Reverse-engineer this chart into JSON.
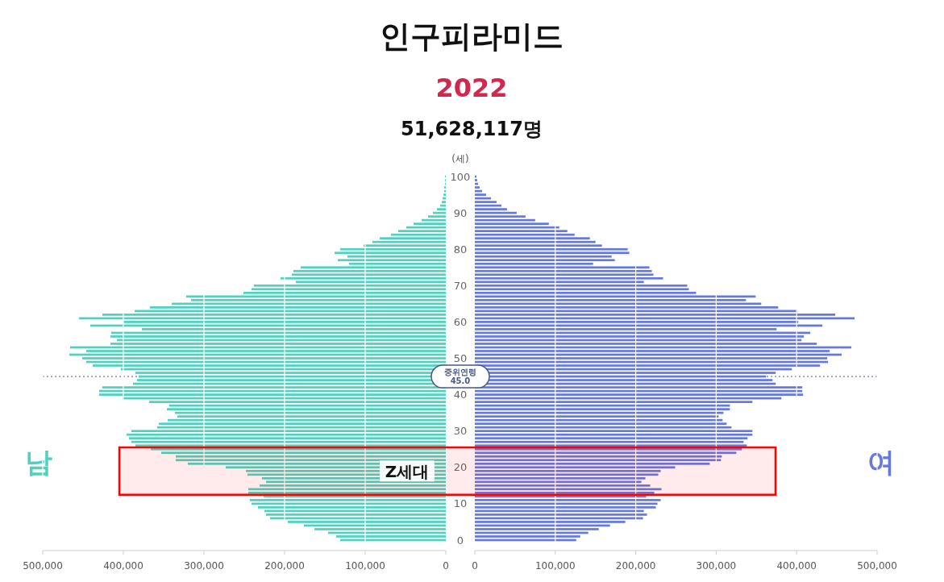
{
  "chart_data": [
    {
      "type": "bar",
      "orientation": "horizontal",
      "title": "인구피라미드",
      "subtitle": "2022",
      "annotations": [
        "51,628,117명"
      ],
      "x": [
        100,
        99,
        98,
        97,
        96,
        95,
        94,
        93,
        92,
        91,
        90,
        89,
        88,
        87,
        86,
        85,
        84,
        83,
        82,
        81,
        80,
        79,
        78,
        77,
        76,
        75,
        74,
        73,
        72,
        71,
        70,
        69,
        68,
        67,
        66,
        65,
        64,
        63,
        62,
        61,
        60,
        59,
        58,
        57,
        56,
        55,
        54,
        53,
        52,
        51,
        50,
        49,
        48,
        47,
        46,
        45,
        44,
        43,
        42,
        41,
        40,
        39,
        38,
        37,
        36,
        35,
        34,
        33,
        32,
        31,
        30,
        29,
        28,
        27,
        26,
        25,
        24,
        23,
        22,
        21,
        20,
        19,
        18,
        17,
        16,
        15,
        14,
        13,
        12,
        11,
        10,
        9,
        8,
        7,
        6,
        5,
        4,
        3,
        2,
        1,
        0
      ],
      "series": [
        {
          "name": "남",
          "color": "#4fd1be",
          "values": [
            1000,
            1000,
            1000,
            2000,
            2000,
            3000,
            4000,
            5000,
            7000,
            11000,
            16000,
            22000,
            30000,
            40000,
            49000,
            59000,
            68000,
            82000,
            91000,
            102000,
            131000,
            138000,
            122000,
            134000,
            120000,
            180000,
            189000,
            191000,
            205000,
            186000,
            238000,
            241000,
            251000,
            322000,
            316000,
            340000,
            367000,
            386000,
            426000,
            455000,
            400000,
            441000,
            377000,
            415000,
            416000,
            408000,
            416000,
            466000,
            446000,
            467000,
            451000,
            446000,
            438000,
            403000,
            385000,
            381000,
            383000,
            388000,
            426000,
            430000,
            430000,
            401000,
            368000,
            343000,
            346000,
            336000,
            333000,
            345000,
            356000,
            358000,
            390000,
            396000,
            393000,
            390000,
            385000,
            366000,
            353000,
            335000,
            335000,
            320000,
            273000,
            248000,
            246000,
            228000,
            223000,
            231000,
            245000,
            245000,
            226000,
            243000,
            241000,
            233000,
            225000,
            223000,
            218000,
            196000,
            176000,
            163000,
            146000,
            136000,
            131000
          ]
        }
      ],
      "xlim": [
        500000,
        0
      ],
      "xticks": [
        {
          "value": 500000,
          "label": "500,000"
        },
        {
          "value": 400000,
          "label": "400,000"
        },
        {
          "value": 300000,
          "label": "300,000"
        },
        {
          "value": 200000,
          "label": "200,000"
        },
        {
          "value": 100000,
          "label": "100,000"
        },
        0
      ],
      "ylim": [
        0,
        100
      ],
      "yticks": [
        0,
        10,
        20,
        30,
        40,
        50,
        60,
        70,
        80,
        90,
        100
      ],
      "grid": "x",
      "tick_labels": "x",
      "ref_lines": [
        {
          "axis": "y",
          "value": 45,
          "color": "#4a5a80",
          "line_style": "dotted"
        }
      ],
      "bands": [
        {
          "axis": "y",
          "from": 12.5,
          "to": 25.5,
          "label": "Z세대",
          "color": "#ff0000"
        }
      ]
    },
    {
      "type": "bar",
      "orientation": "horizontal",
      "ylabel": "(세)",
      "x": [
        100,
        99,
        98,
        97,
        96,
        95,
        94,
        93,
        92,
        91,
        90,
        89,
        88,
        87,
        86,
        85,
        84,
        83,
        82,
        81,
        80,
        79,
        78,
        77,
        76,
        75,
        74,
        73,
        72,
        71,
        70,
        69,
        68,
        67,
        66,
        65,
        64,
        63,
        62,
        61,
        60,
        59,
        58,
        57,
        56,
        55,
        54,
        53,
        52,
        51,
        50,
        49,
        48,
        47,
        46,
        45,
        44,
        43,
        42,
        41,
        40,
        39,
        38,
        37,
        36,
        35,
        34,
        33,
        32,
        31,
        30,
        29,
        28,
        27,
        26,
        25,
        24,
        23,
        22,
        21,
        20,
        19,
        18,
        17,
        16,
        15,
        14,
        13,
        12,
        11,
        10,
        9,
        8,
        7,
        6,
        5,
        4,
        3,
        2,
        1,
        0
      ],
      "series": [
        {
          "name": "여",
          "color": "#6478e0",
          "values": [
            2000,
            3000,
            4000,
            6000,
            9000,
            14000,
            20000,
            27000,
            33000,
            40000,
            52000,
            63000,
            75000,
            92000,
            105000,
            115000,
            124000,
            143000,
            150000,
            158000,
            190000,
            192000,
            170000,
            174000,
            147000,
            217000,
            220000,
            222000,
            234000,
            210000,
            264000,
            266000,
            275000,
            349000,
            337000,
            356000,
            377000,
            401000,
            448000,
            472000,
            402000,
            432000,
            375000,
            417000,
            409000,
            406000,
            425000,
            468000,
            441000,
            456000,
            438000,
            439000,
            429000,
            394000,
            374000,
            362000,
            370000,
            374000,
            407000,
            407000,
            408000,
            381000,
            345000,
            317000,
            317000,
            309000,
            303000,
            308000,
            313000,
            319000,
            345000,
            345000,
            339000,
            334000,
            338000,
            332000,
            325000,
            307000,
            306000,
            292000,
            249000,
            231000,
            228000,
            212000,
            207000,
            218000,
            232000,
            223000,
            213000,
            231000,
            227000,
            225000,
            210000,
            214000,
            209000,
            187000,
            168000,
            154000,
            141000,
            131000,
            126000
          ]
        }
      ],
      "xlim": [
        0,
        500000
      ],
      "xticks": [
        0,
        {
          "value": 100000,
          "label": "100,000"
        },
        {
          "value": 200000,
          "label": "200,000"
        },
        {
          "value": 300000,
          "label": "300,000"
        },
        {
          "value": 400000,
          "label": "400,000"
        },
        {
          "value": 500000,
          "label": "500,000"
        }
      ],
      "ylim": [
        0,
        100
      ],
      "yticks": [
        0,
        10,
        20,
        30,
        40,
        50,
        60,
        70,
        80,
        90,
        100
      ],
      "grid": "x",
      "ref_lines": [
        {
          "axis": "y",
          "value": 45,
          "label": "중위연령\n45.0",
          "color": "#4a5a80",
          "line_style": "dotted"
        }
      ],
      "bands": [
        {
          "axis": "y",
          "from": 12.5,
          "to": 25.5,
          "color": "#ff0000"
        }
      ]
    }
  ]
}
